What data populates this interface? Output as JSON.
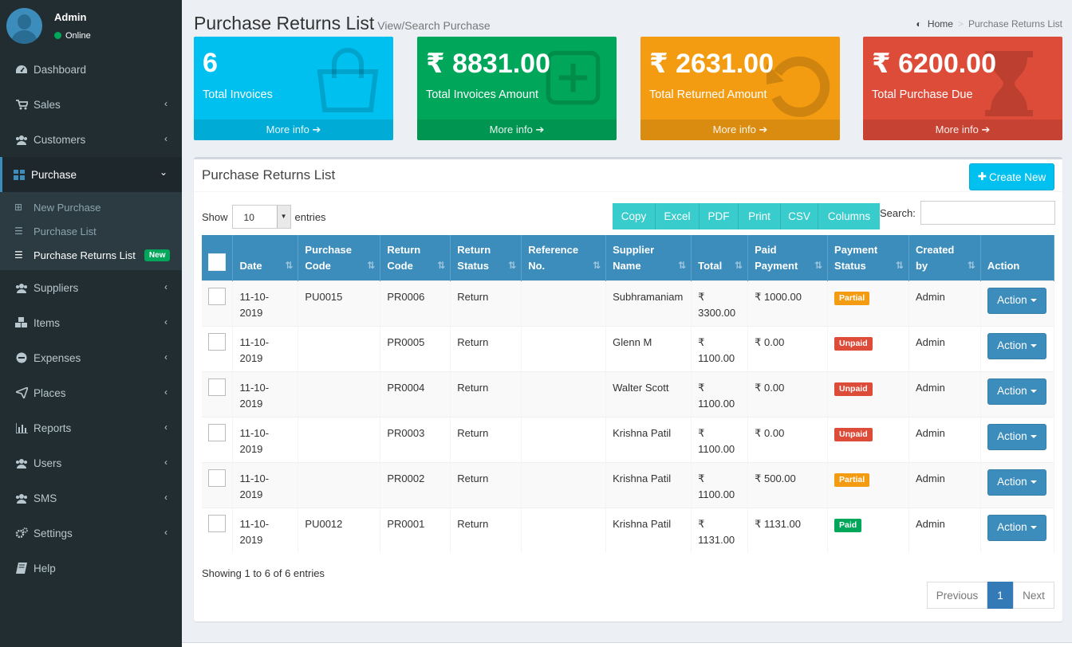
{
  "user": {
    "name": "Admin",
    "status": "Online"
  },
  "sidebar": {
    "items": [
      {
        "label": "Dashboard",
        "icon": "dashboard-icon"
      },
      {
        "label": "Sales",
        "icon": "cart-icon"
      },
      {
        "label": "Customers",
        "icon": "users-icon"
      },
      {
        "label": "Purchase",
        "icon": "grid-icon"
      },
      {
        "label": "Suppliers",
        "icon": "users-icon"
      },
      {
        "label": "Items",
        "icon": "cubes-icon"
      },
      {
        "label": "Expenses",
        "icon": "minus-circle-icon"
      },
      {
        "label": "Places",
        "icon": "paper-plane-icon"
      },
      {
        "label": "Reports",
        "icon": "bar-chart-icon"
      },
      {
        "label": "Users",
        "icon": "users-icon"
      },
      {
        "label": "SMS",
        "icon": "users-icon"
      },
      {
        "label": "Settings",
        "icon": "gears-icon"
      },
      {
        "label": "Help",
        "icon": "book-icon"
      }
    ],
    "purchase_sub": [
      {
        "label": "New Purchase"
      },
      {
        "label": "Purchase List"
      },
      {
        "label": "Purchase Returns List",
        "badge": "New"
      }
    ]
  },
  "header": {
    "title": "Purchase Returns List",
    "subtitle": "View/Search Purchase",
    "breadcrumb_home": "Home",
    "breadcrumb_current": "Purchase Returns List"
  },
  "stats": [
    {
      "value": "6",
      "label": "Total Invoices",
      "more": "More info",
      "color": "#00c0ef"
    },
    {
      "value": "₹ 8831.00",
      "label": "Total Invoices Amount",
      "more": "More info",
      "color": "#00a65a"
    },
    {
      "value": "₹ 2631.00",
      "label": "Total Returned Amount",
      "more": "More info",
      "color": "#f39c12"
    },
    {
      "value": "₹ 6200.00",
      "label": "Total Purchase Due",
      "more": "More info",
      "color": "#dd4b39"
    }
  ],
  "panel": {
    "title": "Purchase Returns List",
    "create_label": "Create New",
    "show_label": "Show",
    "entries_label": "entries",
    "page_length": "10",
    "search_label": "Search:",
    "export_buttons": [
      "Copy",
      "Excel",
      "PDF",
      "Print",
      "CSV",
      "Columns"
    ]
  },
  "table": {
    "headers": [
      {
        "line1": "Date",
        "line2": ""
      },
      {
        "line1": "Purchase",
        "line2": "Code"
      },
      {
        "line1": "Return",
        "line2": "Code"
      },
      {
        "line1": "Return",
        "line2": "Status"
      },
      {
        "line1": "Reference",
        "line2": "No."
      },
      {
        "line1": "Supplier",
        "line2": "Name"
      },
      {
        "line1": "Total",
        "line2": ""
      },
      {
        "line1": "Paid",
        "line2": "Payment"
      },
      {
        "line1": "Payment",
        "line2": "Status"
      },
      {
        "line1": "Created",
        "line2": "by"
      },
      {
        "line1": "Action",
        "line2": ""
      }
    ],
    "rows": [
      {
        "date": "11-10-2019",
        "purchase_code": "PU0015",
        "return_code": "PR0006",
        "return_status": "Return",
        "reference": "",
        "supplier": "Subhramaniam",
        "total_sym": "₹",
        "total": "3300.00",
        "paid": "₹ 1000.00",
        "payment_status": "Partial",
        "created_by": "Admin",
        "action": "Action"
      },
      {
        "date": "11-10-2019",
        "purchase_code": "",
        "return_code": "PR0005",
        "return_status": "Return",
        "reference": "",
        "supplier": "Glenn M",
        "total_sym": "₹",
        "total": "1100.00",
        "paid": "₹ 0.00",
        "payment_status": "Unpaid",
        "created_by": "Admin",
        "action": "Action"
      },
      {
        "date": "11-10-2019",
        "purchase_code": "",
        "return_code": "PR0004",
        "return_status": "Return",
        "reference": "",
        "supplier": "Walter Scott",
        "total_sym": "₹",
        "total": "1100.00",
        "paid": "₹ 0.00",
        "payment_status": "Unpaid",
        "created_by": "Admin",
        "action": "Action"
      },
      {
        "date": "11-10-2019",
        "purchase_code": "",
        "return_code": "PR0003",
        "return_status": "Return",
        "reference": "",
        "supplier": "Krishna Patil",
        "total_sym": "₹",
        "total": "1100.00",
        "paid": "₹ 0.00",
        "payment_status": "Unpaid",
        "created_by": "Admin",
        "action": "Action"
      },
      {
        "date": "11-10-2019",
        "purchase_code": "",
        "return_code": "PR0002",
        "return_status": "Return",
        "reference": "",
        "supplier": "Krishna Patil",
        "total_sym": "₹",
        "total": "1100.00",
        "paid": "₹ 500.00",
        "payment_status": "Partial",
        "created_by": "Admin",
        "action": "Action"
      },
      {
        "date": "11-10-2019",
        "purchase_code": "PU0012",
        "return_code": "PR0001",
        "return_status": "Return",
        "reference": "",
        "supplier": "Krishna Patil",
        "total_sym": "₹",
        "total": "1131.00",
        "paid": "₹ 1131.00",
        "payment_status": "Paid",
        "created_by": "Admin",
        "action": "Action"
      }
    ]
  },
  "footer": {
    "info": "Showing 1 to 6 of 6 entries",
    "prev": "Previous",
    "page": "1",
    "next": "Next"
  }
}
